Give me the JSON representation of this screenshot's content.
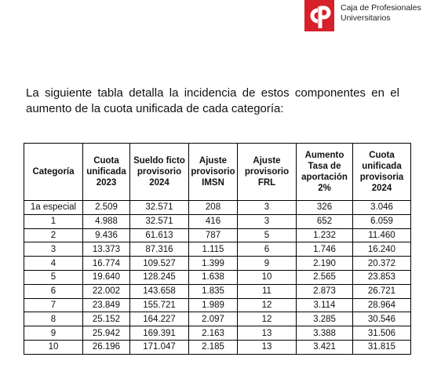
{
  "header": {
    "brand": [
      "Caja de Profesionales",
      "Universitarios"
    ]
  },
  "intro": "La siguiente tabla detalla la incidencia de estos componentes en el aumento de la cuota unificada de cada categoría:",
  "table": {
    "columns": [
      [
        "Categoría"
      ],
      [
        "Cuota",
        "unificada",
        "2023"
      ],
      [
        "Sueldo ficto",
        "provisorio",
        "2024"
      ],
      [
        "Ajuste",
        "provisorio",
        "IMSN"
      ],
      [
        "Ajuste",
        "provisorio",
        "FRL"
      ],
      [
        "Aumento",
        "Tasa de",
        "aportación",
        "2%"
      ],
      [
        "Cuota",
        "unificada",
        "provisoria",
        "2024"
      ]
    ],
    "rows": [
      [
        "1a especial",
        "2.509",
        "32.571",
        "208",
        "3",
        "326",
        "3.046"
      ],
      [
        "1",
        "4.988",
        "32.571",
        "416",
        "3",
        "652",
        "6.059"
      ],
      [
        "2",
        "9.436",
        "61.613",
        "787",
        "5",
        "1.232",
        "11.460"
      ],
      [
        "3",
        "13.373",
        "87.316",
        "1.115",
        "6",
        "1.746",
        "16.240"
      ],
      [
        "4",
        "16.774",
        "109.527",
        "1.399",
        "9",
        "2.190",
        "20.372"
      ],
      [
        "5",
        "19.640",
        "128.245",
        "1.638",
        "10",
        "2.565",
        "23.853"
      ],
      [
        "6",
        "22.002",
        "143.658",
        "1.835",
        "11",
        "2.873",
        "26.721"
      ],
      [
        "7",
        "23.849",
        "155.721",
        "1.989",
        "12",
        "3.114",
        "28.964"
      ],
      [
        "8",
        "25.152",
        "164.227",
        "2.097",
        "12",
        "3.285",
        "30.546"
      ],
      [
        "9",
        "25.942",
        "169.391",
        "2.163",
        "13",
        "3.388",
        "31.506"
      ],
      [
        "10",
        "26.196",
        "171.047",
        "2.185",
        "13",
        "3.421",
        "31.815"
      ]
    ]
  }
}
